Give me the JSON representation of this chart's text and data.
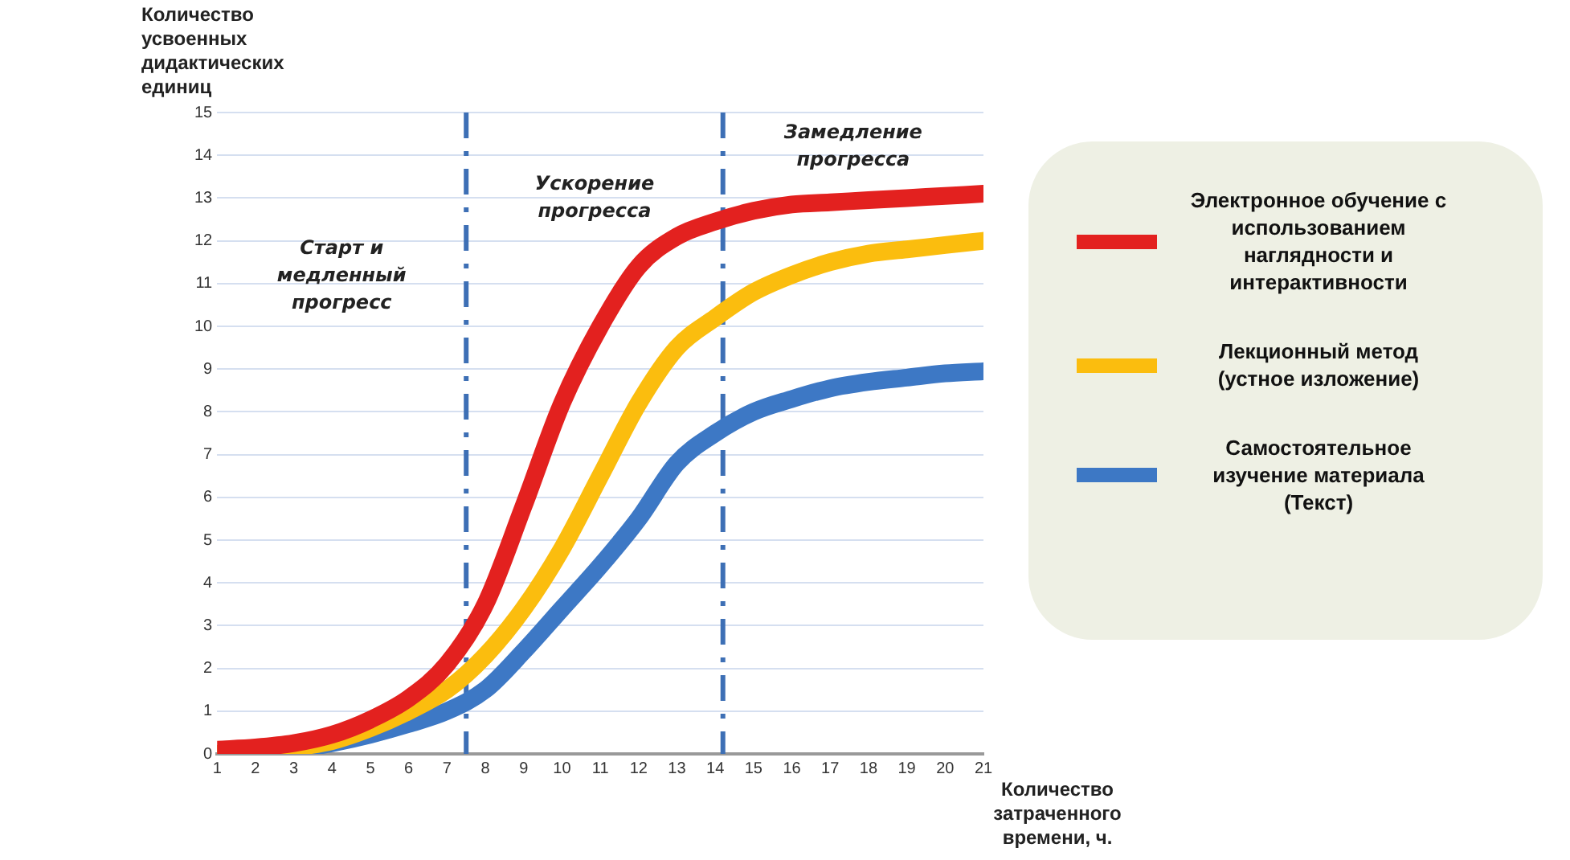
{
  "chart_data": {
    "type": "line",
    "xlabel": "Количество затраченного времени, ч.",
    "ylabel": "Количество усвоенных дидактических единиц",
    "x": [
      1,
      2,
      3,
      4,
      5,
      6,
      7,
      8,
      9,
      10,
      11,
      12,
      13,
      14,
      15,
      16,
      17,
      18,
      19,
      20,
      21
    ],
    "series": [
      {
        "name": "Электронное обучение с использованием наглядности и интерактивности",
        "color": "#e3211f",
        "values": [
          0.1,
          0.15,
          0.25,
          0.45,
          0.8,
          1.3,
          2.1,
          3.5,
          5.8,
          8.2,
          10.0,
          11.4,
          12.1,
          12.45,
          12.7,
          12.85,
          12.9,
          12.95,
          13.0,
          13.05,
          13.1
        ]
      },
      {
        "name": "Лекционный метод (устное изложение)",
        "color": "#fbbd0e",
        "values": [
          0,
          0.05,
          0.15,
          0.3,
          0.6,
          1.0,
          1.5,
          2.3,
          3.4,
          4.8,
          6.5,
          8.2,
          9.5,
          10.2,
          10.8,
          11.2,
          11.5,
          11.7,
          11.8,
          11.9,
          12.0
        ]
      },
      {
        "name": "Самостоятельное изучение материала (Текст)",
        "color": "#3d78c5",
        "values": [
          0,
          0.03,
          0.1,
          0.25,
          0.45,
          0.7,
          1.0,
          1.5,
          2.4,
          3.4,
          4.4,
          5.5,
          6.8,
          7.5,
          8.0,
          8.3,
          8.55,
          8.7,
          8.8,
          8.9,
          8.95
        ]
      }
    ],
    "xlim": [
      1,
      21
    ],
    "xticks": [
      1,
      2,
      3,
      4,
      5,
      6,
      7,
      8,
      9,
      10,
      11,
      12,
      13,
      14,
      15,
      16,
      17,
      18,
      19,
      20,
      21
    ],
    "ylim": [
      0,
      15
    ],
    "yticks": [
      0,
      1,
      2,
      3,
      4,
      5,
      6,
      7,
      8,
      9,
      10,
      11,
      12,
      13,
      14,
      15
    ],
    "grid": "y",
    "legend": "right",
    "marker": "none",
    "line_style": "solid",
    "ref_lines": [
      {
        "axis": "x",
        "value": 7.5,
        "color": "#3d6fb5",
        "line_style": "dashed"
      },
      {
        "axis": "x",
        "value": 14.2,
        "color": "#3d6fb5",
        "line_style": "dashed"
      }
    ],
    "annotations": [
      "Старт и медленный прогресс",
      "Ускорение прогресса",
      "Замедление прогресса"
    ]
  }
}
